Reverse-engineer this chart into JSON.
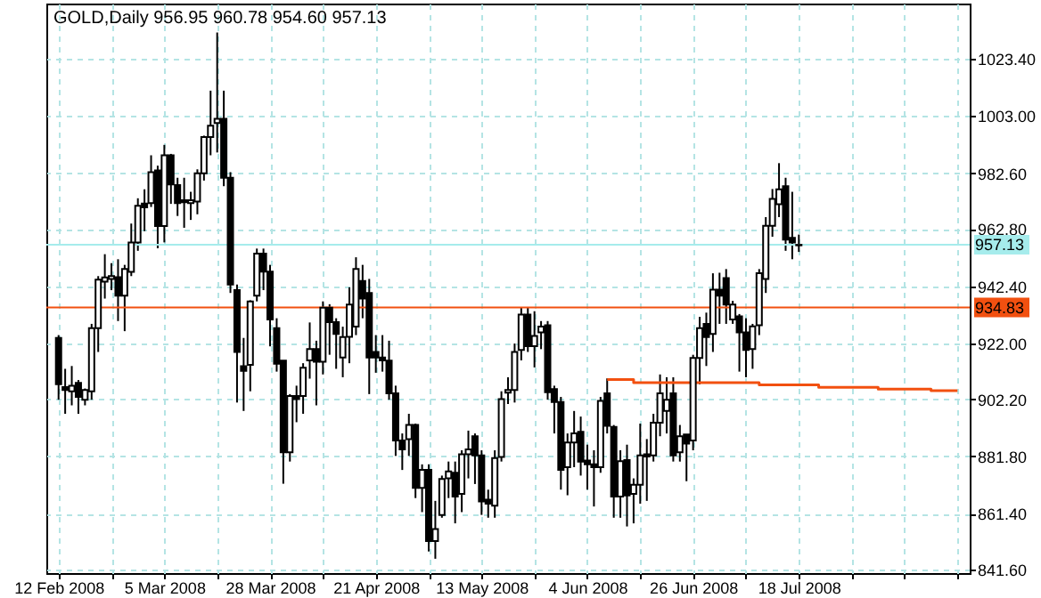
{
  "chart_data": {
    "type": "candlestick",
    "title": "GOLD,Daily  956.95 960.78 954.60 957.13",
    "categories": [
      "12 Feb 2008",
      null,
      null,
      null,
      null,
      null,
      null,
      null,
      null,
      null,
      null,
      null,
      null,
      null,
      null,
      null,
      "5 Mar 2008",
      null,
      null,
      null,
      null,
      null,
      null,
      null,
      null,
      null,
      null,
      null,
      null,
      null,
      null,
      null,
      "28 Mar 2008",
      null,
      null,
      null,
      null,
      null,
      null,
      null,
      null,
      null,
      null,
      null,
      null,
      null,
      null,
      null,
      "21 Apr 2008",
      null,
      null,
      null,
      null,
      null,
      null,
      null,
      null,
      null,
      null,
      null,
      null,
      null,
      null,
      null,
      "13 May 2008",
      null,
      null,
      null,
      null,
      null,
      null,
      null,
      null,
      null,
      null,
      null,
      null,
      null,
      null,
      null,
      "4 Jun 2008",
      null,
      null,
      null,
      null,
      null,
      null,
      null,
      null,
      null,
      null,
      null,
      null,
      null,
      null,
      null,
      "26 Jun 2008",
      null,
      null,
      null,
      null,
      null,
      null,
      null,
      null,
      null,
      null,
      null,
      null,
      null,
      null,
      null,
      "18 Jul 2008",
      null,
      null,
      null,
      null,
      null,
      null,
      null,
      null,
      null,
      null,
      null,
      null,
      null,
      null,
      null,
      null,
      null,
      null,
      null,
      null,
      null,
      null,
      null,
      null
    ],
    "ohlc": [
      [
        924,
        925,
        902,
        907.5
      ],
      [
        906.5,
        913,
        897,
        905.5
      ],
      [
        905,
        914,
        900,
        907
      ],
      [
        908,
        909,
        897,
        903
      ],
      [
        902,
        906,
        900,
        905.5
      ],
      [
        905,
        929,
        902,
        927.5
      ],
      [
        927.5,
        946,
        919,
        944.7
      ],
      [
        944,
        953.8,
        938,
        945.5
      ],
      [
        945,
        950.6,
        941,
        946
      ],
      [
        945.6,
        952,
        930,
        939
      ],
      [
        939,
        950,
        926.4,
        948.5
      ],
      [
        947.5,
        964.7,
        946,
        958
      ],
      [
        958,
        973.7,
        955,
        971
      ],
      [
        971.8,
        976.9,
        962,
        970.5
      ],
      [
        972,
        989,
        970.6,
        983
      ],
      [
        983.6,
        985.3,
        955.9,
        963.8
      ],
      [
        963.8,
        992.7,
        958,
        989
      ],
      [
        989,
        989.5,
        971.7,
        978.6
      ],
      [
        978.4,
        981,
        967.4,
        972
      ],
      [
        973,
        981,
        963.2,
        972.3
      ],
      [
        972,
        976,
        966,
        973
      ],
      [
        972.5,
        984,
        968,
        982.6
      ],
      [
        982.6,
        996,
        980,
        995.5
      ],
      [
        995.5,
        1012,
        989,
        999.5
      ],
      [
        1000.5,
        1032.7,
        990,
        1002
      ],
      [
        1002,
        1012,
        978,
        981
      ],
      [
        981,
        983,
        940,
        943
      ],
      [
        941,
        943,
        901,
        919
      ],
      [
        913.9,
        924,
        898,
        912.3
      ],
      [
        914.4,
        937.4,
        905,
        937
      ],
      [
        939,
        955.8,
        937,
        954
      ],
      [
        954,
        955.8,
        941,
        947.6
      ],
      [
        947.6,
        950,
        921,
        930.6
      ],
      [
        927.5,
        931,
        912,
        914.8
      ],
      [
        915.9,
        916,
        872.1,
        883.3
      ],
      [
        883.3,
        904,
        880,
        903.3
      ],
      [
        903.3,
        907,
        894,
        902.2
      ],
      [
        903.3,
        915,
        897,
        913.4
      ],
      [
        916,
        929.5,
        909.5,
        920
      ],
      [
        920,
        923,
        900,
        915.5
      ],
      [
        915.5,
        937,
        911,
        934.8
      ],
      [
        934.8,
        936,
        918,
        929.6
      ],
      [
        929.6,
        931,
        913,
        925.4
      ],
      [
        917,
        928,
        910,
        924.3
      ],
      [
        924.4,
        942,
        915,
        935.9
      ],
      [
        928,
        952.7,
        925,
        948.5
      ],
      [
        944.3,
        950,
        931,
        938
      ],
      [
        940,
        945,
        904,
        917
      ],
      [
        919,
        925,
        911.6,
        917
      ],
      [
        917,
        925,
        912,
        916
      ],
      [
        915.9,
        923,
        902,
        904.3
      ],
      [
        904.3,
        907,
        882,
        887.5
      ],
      [
        887.5,
        890,
        877,
        884.3
      ],
      [
        888,
        897,
        882,
        893
      ],
      [
        893,
        893.5,
        867,
        870.6
      ],
      [
        870.6,
        879,
        862,
        877
      ],
      [
        877,
        879,
        848,
        851.7
      ],
      [
        851.7,
        866,
        845.4,
        856
      ],
      [
        861,
        875,
        860,
        873.8
      ],
      [
        874,
        880,
        867,
        876.5
      ],
      [
        876,
        880,
        858,
        867.5
      ],
      [
        868.5,
        884,
        862,
        882.6
      ],
      [
        882.6,
        891,
        874,
        884.3
      ],
      [
        889,
        890,
        872,
        882.2
      ],
      [
        882.2,
        884,
        861,
        865.8
      ],
      [
        866.4,
        870,
        860,
        865
      ],
      [
        864.3,
        884,
        860,
        881.2
      ],
      [
        881.6,
        905,
        880,
        902.2
      ],
      [
        904.5,
        910,
        900.5,
        905.5
      ],
      [
        905.5,
        922,
        901,
        919
      ],
      [
        919.7,
        935,
        916,
        932.3
      ],
      [
        932.3,
        935,
        919,
        921.1
      ],
      [
        921.1,
        933.5,
        913.5,
        924.7
      ],
      [
        926,
        930,
        920,
        928
      ],
      [
        928.5,
        930,
        902,
        904.7
      ],
      [
        905.8,
        907,
        890,
        901.2
      ],
      [
        901.2,
        903,
        870,
        877
      ],
      [
        878,
        890,
        868,
        886.8
      ],
      [
        886.8,
        898,
        878,
        890
      ],
      [
        890.6,
        896,
        875,
        880
      ],
      [
        880.4,
        886,
        870,
        879
      ],
      [
        879,
        884,
        864,
        878
      ],
      [
        878,
        903,
        876,
        901.6
      ],
      [
        904.3,
        909.6,
        890,
        892.7
      ],
      [
        892.3,
        893,
        860,
        867.5
      ],
      [
        867.5,
        884,
        860,
        880.1
      ],
      [
        880.5,
        886,
        856.9,
        867.9
      ],
      [
        868.5,
        874,
        858,
        871.7
      ],
      [
        871.7,
        893.5,
        865,
        882.2
      ],
      [
        882.6,
        888,
        866,
        881.8
      ],
      [
        882.2,
        897,
        880,
        893.8
      ],
      [
        893.8,
        911,
        889,
        904.3
      ],
      [
        898,
        910,
        890,
        902
      ],
      [
        904.3,
        910,
        880,
        882.2
      ],
      [
        883.3,
        893,
        880,
        889
      ],
      [
        889.6,
        889.6,
        873,
        886.4
      ],
      [
        887.5,
        918,
        884,
        916.9
      ],
      [
        916.9,
        931.5,
        907.5,
        927.5
      ],
      [
        929,
        933,
        914,
        924.3
      ],
      [
        925.4,
        947,
        919,
        941.2
      ],
      [
        941.2,
        947.2,
        929,
        939
      ],
      [
        945.3,
        948.5,
        929,
        935.9
      ],
      [
        930.6,
        937.2,
        929,
        935.9
      ],
      [
        931.7,
        932.5,
        912,
        926
      ],
      [
        926,
        931,
        910,
        919.7
      ],
      [
        920,
        929,
        913,
        928.1
      ],
      [
        928.5,
        948.5,
        925,
        947
      ],
      [
        945,
        967,
        940,
        963.9
      ],
      [
        963.9,
        977,
        960,
        973.5
      ],
      [
        971.6,
        986.2,
        967,
        976.9
      ],
      [
        978,
        981,
        955,
        959
      ],
      [
        959.6,
        976,
        952,
        958
      ],
      [
        956.95,
        960.78,
        954.6,
        957.13
      ],
      null,
      null,
      null,
      null,
      null,
      null,
      null,
      null,
      null,
      null,
      null,
      null,
      null,
      null,
      null,
      null,
      null,
      null,
      null,
      null,
      null,
      null,
      null,
      null
    ],
    "series": [
      {
        "type": "step",
        "color": "#f25010",
        "values": [
          null,
          null,
          null,
          null,
          null,
          null,
          null,
          null,
          null,
          null,
          null,
          null,
          null,
          null,
          null,
          null,
          null,
          null,
          null,
          null,
          null,
          null,
          null,
          null,
          null,
          null,
          null,
          null,
          null,
          null,
          null,
          null,
          null,
          null,
          null,
          null,
          null,
          null,
          null,
          null,
          null,
          null,
          null,
          null,
          null,
          null,
          null,
          null,
          null,
          null,
          null,
          null,
          null,
          null,
          null,
          null,
          null,
          null,
          null,
          null,
          null,
          null,
          null,
          null,
          null,
          null,
          null,
          null,
          null,
          null,
          null,
          null,
          null,
          null,
          null,
          null,
          null,
          null,
          null,
          null,
          null,
          null,
          null,
          909.2,
          909.2,
          909.2,
          909.2,
          908.1,
          908.1,
          908.1,
          908.1,
          908.1,
          908.1,
          908.1,
          908.1,
          908.1,
          908.1,
          908.1,
          908.1,
          908.1,
          908.1,
          908.1,
          908.1,
          908.1,
          908.1,
          908.1,
          907.3,
          907.3,
          907.3,
          907.3,
          907.3,
          907.3,
          907.3,
          907.3,
          907.3,
          906.4,
          906.4,
          906.4,
          906.4,
          906.4,
          906.4,
          906.4,
          906.4,
          906.4,
          905.8,
          905.8,
          905.8,
          905.8,
          905.8,
          905.8,
          905.8,
          905.8,
          905.2,
          905.2,
          905.2,
          905.2,
          905.2
        ]
      }
    ],
    "ylim": [
      840.3,
      1043.0
    ],
    "yticks": [
      {
        "value": 841.6,
        "label": "841.60"
      },
      {
        "value": 861.4,
        "label": "861.40"
      },
      {
        "value": 881.8,
        "label": "881.80"
      },
      {
        "value": 902.2,
        "label": "902.20"
      },
      {
        "value": 922.0,
        "label": "922.00"
      },
      {
        "value": 942.4,
        "label": "942.40"
      },
      {
        "value": 962.8,
        "label": "962.80"
      },
      {
        "value": 982.6,
        "label": "982.60"
      },
      {
        "value": 1003.0,
        "label": "1003.00"
      },
      {
        "value": 1023.4,
        "label": "1023.40"
      }
    ],
    "grid": true,
    "ref_lines": [
      {
        "axis": "y",
        "value": 957.13,
        "label": "957.13",
        "color": "#a6ecec"
      },
      {
        "axis": "y",
        "value": 934.83,
        "label": "934.83",
        "color": "#f25010"
      }
    ]
  }
}
